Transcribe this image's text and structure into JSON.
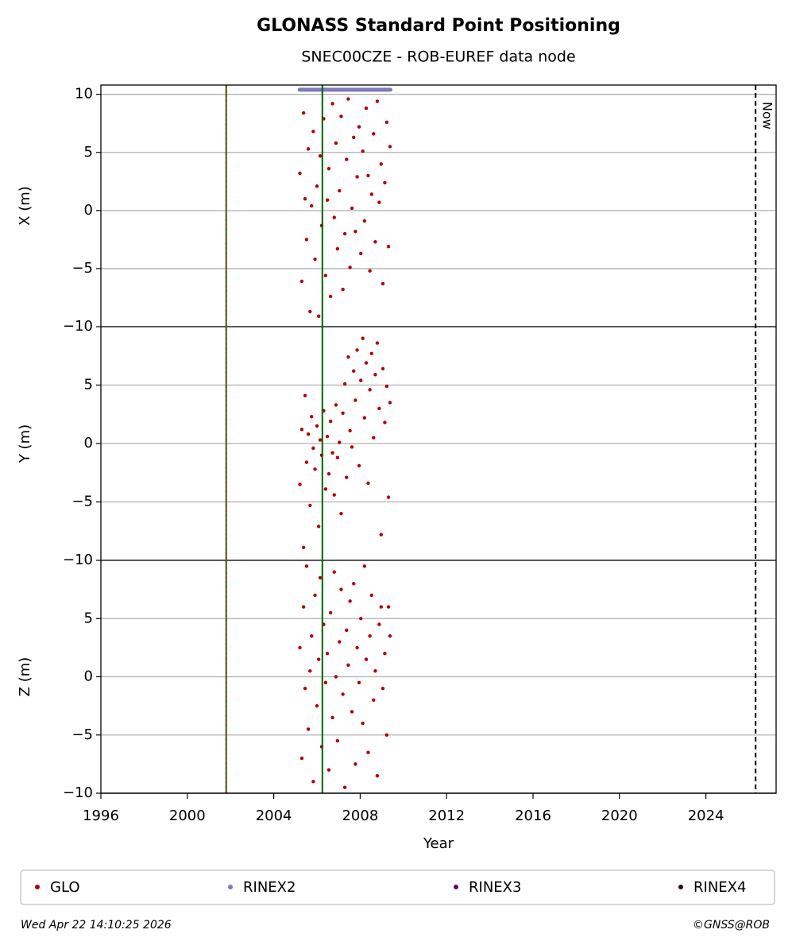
{
  "chart_data": [
    {
      "type": "scatter",
      "title": "GLONASS Standard Point Positioning",
      "subtitle": "SNEC00CZE - ROB-EUREF data node",
      "ylabel": "X (m)",
      "xlim": [
        1996,
        2027.25
      ],
      "ylim": [
        -10,
        10.8
      ],
      "yticks": [
        {
          "value": -10,
          "label": "−10"
        },
        {
          "value": -5,
          "label": "−5"
        },
        0,
        5,
        10
      ],
      "grid": true,
      "vlines": [
        {
          "x": 2001.8,
          "color": "#008000",
          "dash_color": "#cc0000"
        },
        {
          "x": 2006.25,
          "color": "#006400"
        },
        {
          "x": 2026.3,
          "color": "#000000",
          "dashed": true,
          "label": "Now"
        }
      ],
      "series": [
        {
          "name": "GLO",
          "color": "#b30000",
          "x": [
            2005.21,
            2005.3,
            2005.38,
            2005.45,
            2005.52,
            2005.6,
            2005.68,
            2005.75,
            2005.83,
            2005.91,
            2006.0,
            2006.08,
            2006.15,
            2006.22,
            2006.31,
            2006.4,
            2006.48,
            2006.55,
            2006.63,
            2006.72,
            2006.8,
            2006.88,
            2006.95,
            2007.04,
            2007.12,
            2007.2,
            2007.29,
            2007.37,
            2007.45,
            2007.53,
            2007.62,
            2007.7,
            2007.78,
            2007.86,
            2007.95,
            2008.03,
            2008.12,
            2008.2,
            2008.28,
            2008.37,
            2008.45,
            2008.53,
            2008.62,
            2008.7,
            2008.79,
            2008.88,
            2008.97,
            2009.05,
            2009.14,
            2009.23,
            2009.31,
            2009.38
          ],
          "values": [
            3.2,
            -6.1,
            8.4,
            1.0,
            -2.5,
            5.3,
            -8.7,
            0.4,
            6.8,
            -4.2,
            2.1,
            -9.1,
            4.7,
            -1.3,
            7.9,
            -5.6,
            0.9,
            3.6,
            -7.4,
            9.2,
            -0.6,
            5.8,
            -3.3,
            1.7,
            8.1,
            -6.8,
            -2.0,
            4.4,
            9.6,
            -4.9,
            0.2,
            6.3,
            -1.8,
            2.9,
            7.2,
            -3.7,
            5.1,
            -0.9,
            8.8,
            3.0,
            -5.2,
            1.4,
            6.6,
            -2.7,
            9.4,
            0.7,
            4.0,
            -6.3,
            2.4,
            7.6,
            -3.1,
            5.5
          ]
        },
        {
          "name": "RINEX2",
          "color": "#7b7bbb",
          "x": [
            2005.2,
            2005.6,
            2006.0,
            2006.4,
            2006.8,
            2007.2,
            2007.6,
            2008.0,
            2008.4,
            2008.8,
            2009.1,
            2009.4
          ],
          "values": [
            10.4,
            10.4,
            10.4,
            10.4,
            10.4,
            10.4,
            10.4,
            10.4,
            10.4,
            10.4,
            10.4,
            10.4
          ]
        },
        {
          "name": "RINEX3",
          "color": "#6a006a",
          "x": [],
          "values": []
        },
        {
          "name": "RINEX4",
          "color": "#2a0a1a",
          "x": [],
          "values": []
        }
      ]
    },
    {
      "type": "scatter",
      "ylabel": "Y (m)",
      "xlim": [
        1996,
        2027.25
      ],
      "ylim": [
        -10,
        10
      ],
      "yticks": [
        {
          "value": -10,
          "label": "−10"
        },
        {
          "value": -5,
          "label": "−5"
        },
        0,
        5
      ],
      "grid": true,
      "series": [
        {
          "color": "#b30000",
          "x": [
            2005.21,
            2005.3,
            2005.38,
            2005.45,
            2005.52,
            2005.6,
            2005.68,
            2005.75,
            2005.83,
            2005.91,
            2006.0,
            2006.08,
            2006.15,
            2006.22,
            2006.31,
            2006.4,
            2006.48,
            2006.55,
            2006.63,
            2006.72,
            2006.8,
            2006.88,
            2006.95,
            2007.04,
            2007.12,
            2007.2,
            2007.29,
            2007.37,
            2007.45,
            2007.53,
            2007.62,
            2007.7,
            2007.78,
            2007.86,
            2007.95,
            2008.03,
            2008.12,
            2008.2,
            2008.28,
            2008.37,
            2008.45,
            2008.53,
            2008.62,
            2008.7,
            2008.79,
            2008.88,
            2008.97,
            2009.05,
            2009.14,
            2009.23,
            2009.31,
            2009.38
          ],
          "values": [
            -3.5,
            1.2,
            -8.9,
            4.1,
            -1.6,
            0.8,
            -5.3,
            2.3,
            -0.4,
            -2.2,
            1.5,
            -7.1,
            0.3,
            -1.0,
            2.8,
            -3.9,
            0.6,
            -2.6,
            1.9,
            -0.8,
            -4.4,
            3.3,
            -1.2,
            0.1,
            -6.0,
            2.6,
            5.1,
            -2.9,
            7.4,
            1.1,
            -0.3,
            6.2,
            3.7,
            8.0,
            -1.9,
            5.4,
            9.0,
            2.2,
            6.9,
            -3.4,
            4.6,
            7.7,
            0.5,
            5.9,
            8.6,
            3.0,
            -7.8,
            6.4,
            1.8,
            4.9,
            -4.6,
            3.5
          ]
        }
      ]
    },
    {
      "type": "scatter",
      "ylabel": "Z (m)",
      "xlabel": "Year",
      "xlim": [
        1996,
        2027.25
      ],
      "ylim": [
        -10,
        10
      ],
      "xticks": [
        1996,
        2000,
        2004,
        2008,
        2012,
        2016,
        2020,
        2024
      ],
      "yticks": [
        {
          "value": -10,
          "label": "−10"
        },
        {
          "value": -5,
          "label": "−5"
        },
        0,
        5
      ],
      "grid": true,
      "series": [
        {
          "color": "#b30000",
          "x": [
            2005.21,
            2005.3,
            2005.38,
            2005.45,
            2005.52,
            2005.6,
            2005.68,
            2005.75,
            2005.83,
            2005.91,
            2006.0,
            2006.08,
            2006.15,
            2006.22,
            2006.31,
            2006.4,
            2006.48,
            2006.55,
            2006.63,
            2006.72,
            2006.8,
            2006.88,
            2006.95,
            2007.04,
            2007.12,
            2007.2,
            2007.29,
            2007.37,
            2007.45,
            2007.53,
            2007.62,
            2007.7,
            2007.78,
            2007.86,
            2007.95,
            2008.03,
            2008.12,
            2008.2,
            2008.28,
            2008.37,
            2008.45,
            2008.53,
            2008.62,
            2008.7,
            2008.79,
            2008.88,
            2008.97,
            2009.05,
            2009.14,
            2009.23,
            2009.31,
            2009.38
          ],
          "values": [
            2.5,
            -7.0,
            6.0,
            -1.0,
            9.5,
            -4.5,
            0.5,
            3.5,
            -9.0,
            7.0,
            -2.5,
            1.5,
            8.5,
            -6.0,
            4.5,
            -0.5,
            2.0,
            -8.0,
            5.5,
            -3.5,
            9.0,
            0.0,
            -5.5,
            3.0,
            7.5,
            -1.5,
            -9.5,
            4.0,
            1.0,
            6.5,
            -3.0,
            8.0,
            -7.5,
            2.5,
            -0.5,
            5.0,
            -4.0,
            9.5,
            1.5,
            -6.5,
            3.5,
            7.0,
            -2.0,
            0.5,
            -8.5,
            4.5,
            6.0,
            -1.0,
            2.0,
            -5.0,
            6.0,
            3.5
          ]
        }
      ]
    }
  ],
  "footer": {
    "date": "Wed Apr 22 14:10:25 2026",
    "credit": "©GNSS@ROB"
  }
}
